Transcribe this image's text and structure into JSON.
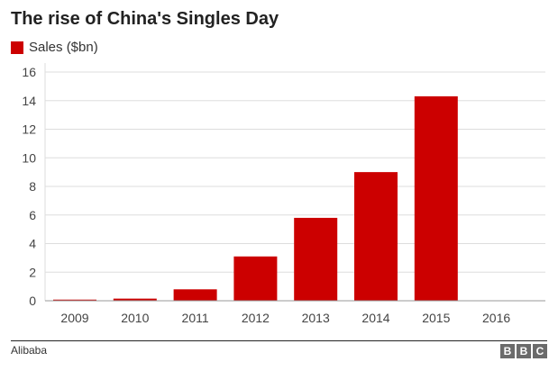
{
  "chart_data": {
    "type": "bar",
    "title": "The rise of China's Singles Day",
    "legend": [
      {
        "label": "Sales ($bn)",
        "color": "#cc0000"
      }
    ],
    "legend_placement": "top-left",
    "categories": [
      "2009",
      "2010",
      "2011",
      "2012",
      "2013",
      "2014",
      "2015",
      "2016"
    ],
    "series": [
      {
        "name": "Sales ($bn)",
        "values": [
          0.08,
          0.15,
          0.8,
          3.1,
          5.8,
          9.0,
          14.3,
          null
        ]
      }
    ],
    "xlabel": "",
    "ylabel": "",
    "ylim": [
      0,
      16
    ],
    "yticks": [
      0,
      2,
      4,
      6,
      8,
      10,
      12,
      14,
      16
    ],
    "grid": true
  },
  "footer": {
    "source": "Alibaba",
    "logo": [
      "B",
      "B",
      "C"
    ]
  }
}
